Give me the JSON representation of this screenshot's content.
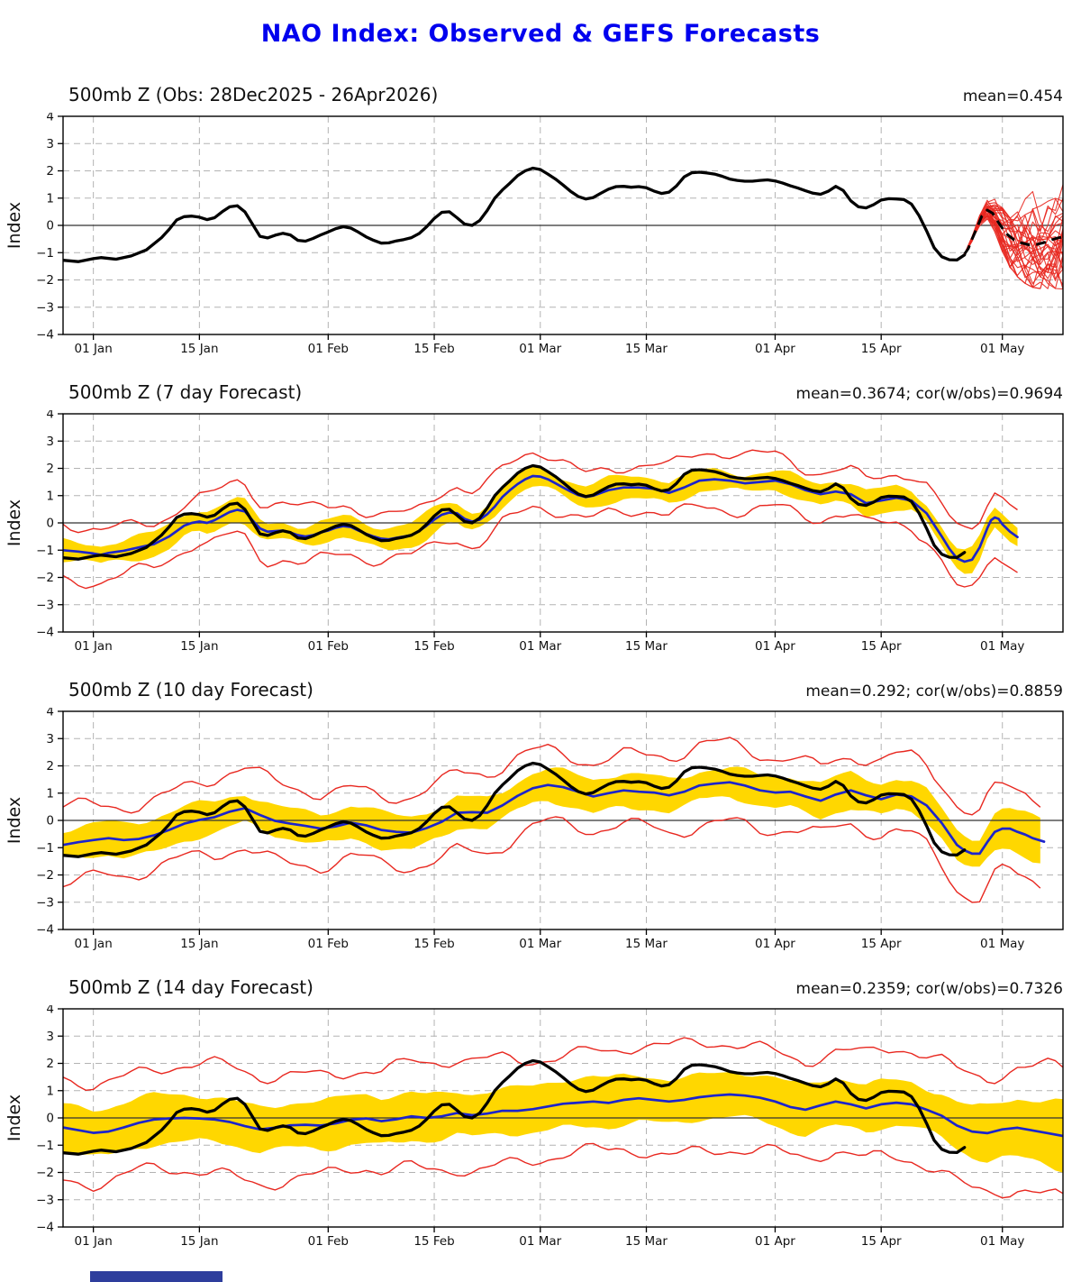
{
  "page": {
    "title": "NAO Index: Observed & GEFS Forecasts"
  },
  "colors": {
    "title_blue": "#0000ee",
    "observed_black": "#000000",
    "ensemble_red": "#e82820",
    "forecast_blue": "#1c24cc",
    "band_yellow": "#ffd700",
    "grid_gray": "#b3b3b3",
    "zero_line": "#333333"
  },
  "axis": {
    "ylabel": "Index",
    "ylim": [
      -4,
      4
    ],
    "ytick_values": [
      4,
      3,
      2,
      1,
      0,
      -1,
      -2,
      -3,
      -4
    ],
    "ytick_labels": [
      "4",
      "3",
      "2",
      "1",
      "0",
      "−1",
      "−2",
      "−3",
      "−4"
    ],
    "xtick_days": [
      4,
      18,
      35,
      49,
      63,
      77,
      94,
      108,
      124
    ],
    "xtick_labels": [
      "01 Jan",
      "15 Jan",
      "01 Feb",
      "15 Feb",
      "01 Mar",
      "15 Mar",
      "01 Apr",
      "15 Apr",
      "01 May"
    ],
    "day_range": [
      0,
      132
    ]
  },
  "panels": [
    {
      "title": "500mb Z (Obs: 28Dec2025 - 26Apr2026)",
      "stats": "mean=0.454",
      "kind": "obs_ensemble",
      "members": 30,
      "seed": 11
    },
    {
      "title": "500mb Z (7 day Forecast)",
      "stats": "mean=0.3674; cor(w/obs)=0.9694",
      "kind": "forecast",
      "fc_key": "fc7",
      "band_halfwidth": 0.38,
      "envelope_halfwidth": 0.92,
      "seed": 2
    },
    {
      "title": "500mb Z (10 day Forecast)",
      "stats": "mean=0.292; cor(w/obs)=0.8859",
      "kind": "forecast",
      "fc_key": "fc10",
      "band_halfwidth": 0.58,
      "envelope_halfwidth": 1.35,
      "seed": 5
    },
    {
      "title": "500mb Z (14 day Forecast)",
      "stats": "mean=0.2359; cor(w/obs)=0.7326",
      "kind": "forecast",
      "fc_key": "fc14",
      "band_halfwidth": 0.85,
      "envelope_halfwidth": 1.9,
      "seed": 8
    }
  ],
  "chart_data": {
    "type": "line",
    "title": "NAO Index: Observed & GEFS Forecasts",
    "x_unit": "days since 28Dec2025",
    "observed": [
      [
        0,
        -1.28
      ],
      [
        2,
        -1.33
      ],
      [
        4,
        -1.22
      ],
      [
        5,
        -1.18
      ],
      [
        7,
        -1.24
      ],
      [
        9,
        -1.12
      ],
      [
        11,
        -0.9
      ],
      [
        13,
        -0.45
      ],
      [
        14,
        -0.15
      ],
      [
        15,
        0.2
      ],
      [
        16,
        0.32
      ],
      [
        17,
        0.34
      ],
      [
        18,
        0.3
      ],
      [
        19,
        0.21
      ],
      [
        20,
        0.28
      ],
      [
        21,
        0.5
      ],
      [
        22,
        0.68
      ],
      [
        23,
        0.72
      ],
      [
        24,
        0.5
      ],
      [
        25,
        0.05
      ],
      [
        26,
        -0.4
      ],
      [
        27,
        -0.46
      ],
      [
        28,
        -0.36
      ],
      [
        29,
        -0.29
      ],
      [
        30,
        -0.35
      ],
      [
        31,
        -0.55
      ],
      [
        32,
        -0.58
      ],
      [
        33,
        -0.48
      ],
      [
        34,
        -0.35
      ],
      [
        35,
        -0.24
      ],
      [
        36,
        -0.12
      ],
      [
        37,
        -0.05
      ],
      [
        38,
        -0.1
      ],
      [
        39,
        -0.25
      ],
      [
        40,
        -0.42
      ],
      [
        41,
        -0.55
      ],
      [
        42,
        -0.65
      ],
      [
        43,
        -0.64
      ],
      [
        44,
        -0.57
      ],
      [
        45,
        -0.52
      ],
      [
        46,
        -0.45
      ],
      [
        47,
        -0.3
      ],
      [
        48,
        -0.05
      ],
      [
        49,
        0.25
      ],
      [
        50,
        0.48
      ],
      [
        51,
        0.5
      ],
      [
        52,
        0.28
      ],
      [
        53,
        0.05
      ],
      [
        54,
        0.0
      ],
      [
        55,
        0.18
      ],
      [
        56,
        0.55
      ],
      [
        57,
        1.0
      ],
      [
        58,
        1.3
      ],
      [
        59,
        1.55
      ],
      [
        60,
        1.82
      ],
      [
        61,
        2.0
      ],
      [
        62,
        2.1
      ],
      [
        63,
        2.05
      ],
      [
        64,
        1.88
      ],
      [
        65,
        1.7
      ],
      [
        66,
        1.48
      ],
      [
        67,
        1.25
      ],
      [
        68,
        1.06
      ],
      [
        69,
        0.97
      ],
      [
        70,
        1.02
      ],
      [
        71,
        1.18
      ],
      [
        72,
        1.33
      ],
      [
        73,
        1.42
      ],
      [
        74,
        1.43
      ],
      [
        75,
        1.4
      ],
      [
        76,
        1.42
      ],
      [
        77,
        1.38
      ],
      [
        78,
        1.26
      ],
      [
        79,
        1.17
      ],
      [
        80,
        1.22
      ],
      [
        81,
        1.45
      ],
      [
        82,
        1.78
      ],
      [
        83,
        1.93
      ],
      [
        84,
        1.95
      ],
      [
        85,
        1.92
      ],
      [
        86,
        1.88
      ],
      [
        87,
        1.8
      ],
      [
        88,
        1.7
      ],
      [
        89,
        1.65
      ],
      [
        90,
        1.62
      ],
      [
        91,
        1.62
      ],
      [
        92,
        1.65
      ],
      [
        93,
        1.67
      ],
      [
        94,
        1.63
      ],
      [
        95,
        1.55
      ],
      [
        96,
        1.45
      ],
      [
        97,
        1.37
      ],
      [
        98,
        1.27
      ],
      [
        99,
        1.18
      ],
      [
        100,
        1.14
      ],
      [
        101,
        1.25
      ],
      [
        102,
        1.43
      ],
      [
        103,
        1.28
      ],
      [
        104,
        0.9
      ],
      [
        105,
        0.68
      ],
      [
        106,
        0.64
      ],
      [
        107,
        0.76
      ],
      [
        108,
        0.93
      ],
      [
        109,
        0.98
      ],
      [
        110,
        0.97
      ],
      [
        111,
        0.95
      ],
      [
        112,
        0.78
      ],
      [
        113,
        0.36
      ],
      [
        114,
        -0.2
      ],
      [
        115,
        -0.82
      ],
      [
        116,
        -1.15
      ],
      [
        117,
        -1.26
      ],
      [
        118,
        -1.27
      ],
      [
        119,
        -1.08
      ]
    ],
    "ensemble_mean_forecast": [
      [
        119,
        -1.05
      ],
      [
        119.5,
        -0.85
      ],
      [
        120,
        -0.5
      ],
      [
        120.7,
        -0.05
      ],
      [
        121.3,
        0.35
      ],
      [
        122,
        0.56
      ],
      [
        122.7,
        0.45
      ],
      [
        123.5,
        0.1
      ],
      [
        124.5,
        -0.3
      ],
      [
        125.5,
        -0.52
      ],
      [
        126.5,
        -0.64
      ],
      [
        127.5,
        -0.71
      ],
      [
        128.5,
        -0.7
      ],
      [
        129.5,
        -0.63
      ],
      [
        130.5,
        -0.53
      ],
      [
        131.2,
        -0.47
      ],
      [
        132,
        -0.42
      ]
    ],
    "ensemble_spread_by_day": [
      0.03,
      0.1,
      0.16,
      0.24,
      0.38,
      0.6,
      0.78,
      0.9,
      1.0,
      1.08,
      1.14,
      1.2,
      1.26,
      1.32
    ],
    "fc7": [
      [
        0,
        -1.0
      ],
      [
        2,
        -1.05
      ],
      [
        4,
        -1.12
      ],
      [
        5,
        -1.17
      ],
      [
        6,
        -1.1
      ],
      [
        8,
        -1.02
      ],
      [
        10,
        -0.9
      ],
      [
        12,
        -0.78
      ],
      [
        14,
        -0.5
      ],
      [
        15,
        -0.3
      ],
      [
        16,
        -0.1
      ],
      [
        17,
        0.0
      ],
      [
        18,
        0.05
      ],
      [
        19,
        0.0
      ],
      [
        20,
        0.1
      ],
      [
        21,
        0.25
      ],
      [
        22,
        0.4
      ],
      [
        23,
        0.48
      ],
      [
        24,
        0.42
      ],
      [
        25,
        0.1
      ],
      [
        26,
        -0.2
      ],
      [
        27,
        -0.32
      ],
      [
        28,
        -0.3
      ],
      [
        29,
        -0.28
      ],
      [
        30,
        -0.35
      ],
      [
        31,
        -0.45
      ],
      [
        32,
        -0.5
      ],
      [
        33,
        -0.45
      ],
      [
        34,
        -0.35
      ],
      [
        35,
        -0.28
      ],
      [
        36,
        -0.18
      ],
      [
        37,
        -0.12
      ],
      [
        38,
        -0.15
      ],
      [
        39,
        -0.28
      ],
      [
        40,
        -0.4
      ],
      [
        41,
        -0.5
      ],
      [
        42,
        -0.58
      ],
      [
        43,
        -0.6
      ],
      [
        44,
        -0.55
      ],
      [
        45,
        -0.5
      ],
      [
        46,
        -0.45
      ],
      [
        47,
        -0.3
      ],
      [
        48,
        -0.1
      ],
      [
        49,
        0.12
      ],
      [
        50,
        0.3
      ],
      [
        51,
        0.38
      ],
      [
        52,
        0.35
      ],
      [
        53,
        0.15
      ],
      [
        54,
        0.05
      ],
      [
        55,
        0.12
      ],
      [
        56,
        0.32
      ],
      [
        57,
        0.6
      ],
      [
        58,
        0.95
      ],
      [
        59,
        1.2
      ],
      [
        60,
        1.42
      ],
      [
        61,
        1.6
      ],
      [
        62,
        1.72
      ],
      [
        63,
        1.7
      ],
      [
        64,
        1.6
      ],
      [
        65,
        1.45
      ],
      [
        66,
        1.3
      ],
      [
        67,
        1.15
      ],
      [
        68,
        1.02
      ],
      [
        69,
        0.95
      ],
      [
        70,
        1.0
      ],
      [
        71,
        1.1
      ],
      [
        72,
        1.2
      ],
      [
        74,
        1.3
      ],
      [
        76,
        1.3
      ],
      [
        78,
        1.25
      ],
      [
        80,
        1.1
      ],
      [
        82,
        1.3
      ],
      [
        84,
        1.55
      ],
      [
        86,
        1.6
      ],
      [
        88,
        1.55
      ],
      [
        90,
        1.45
      ],
      [
        92,
        1.5
      ],
      [
        94,
        1.55
      ],
      [
        96,
        1.42
      ],
      [
        98,
        1.2
      ],
      [
        100,
        1.05
      ],
      [
        102,
        1.15
      ],
      [
        104,
        1.05
      ],
      [
        106,
        0.72
      ],
      [
        108,
        0.82
      ],
      [
        110,
        0.92
      ],
      [
        112,
        0.82
      ],
      [
        114,
        0.35
      ],
      [
        116,
        -0.5
      ],
      [
        117,
        -0.95
      ],
      [
        118,
        -1.3
      ],
      [
        119,
        -1.42
      ],
      [
        120,
        -1.35
      ],
      [
        121,
        -0.9
      ],
      [
        122,
        -0.2
      ],
      [
        122.5,
        0.1
      ],
      [
        123,
        0.2
      ],
      [
        123.5,
        0.15
      ],
      [
        124,
        -0.05
      ],
      [
        125,
        -0.32
      ],
      [
        126,
        -0.52
      ]
    ],
    "fc10": [
      [
        0,
        -0.9
      ],
      [
        2,
        -0.8
      ],
      [
        4,
        -0.72
      ],
      [
        6,
        -0.65
      ],
      [
        8,
        -0.72
      ],
      [
        10,
        -0.68
      ],
      [
        12,
        -0.55
      ],
      [
        14,
        -0.35
      ],
      [
        16,
        -0.12
      ],
      [
        18,
        0.02
      ],
      [
        20,
        0.12
      ],
      [
        22,
        0.32
      ],
      [
        24,
        0.45
      ],
      [
        26,
        0.2
      ],
      [
        28,
        -0.02
      ],
      [
        30,
        -0.12
      ],
      [
        32,
        -0.2
      ],
      [
        34,
        -0.3
      ],
      [
        36,
        -0.22
      ],
      [
        38,
        -0.08
      ],
      [
        40,
        -0.18
      ],
      [
        42,
        -0.35
      ],
      [
        44,
        -0.42
      ],
      [
        46,
        -0.45
      ],
      [
        48,
        -0.28
      ],
      [
        50,
        -0.05
      ],
      [
        52,
        0.28
      ],
      [
        54,
        0.3
      ],
      [
        56,
        0.28
      ],
      [
        58,
        0.55
      ],
      [
        60,
        0.9
      ],
      [
        62,
        1.18
      ],
      [
        64,
        1.3
      ],
      [
        66,
        1.22
      ],
      [
        68,
        1.05
      ],
      [
        70,
        0.88
      ],
      [
        72,
        1.0
      ],
      [
        74,
        1.1
      ],
      [
        76,
        1.05
      ],
      [
        78,
        1.02
      ],
      [
        80,
        0.92
      ],
      [
        82,
        1.05
      ],
      [
        84,
        1.28
      ],
      [
        86,
        1.35
      ],
      [
        88,
        1.4
      ],
      [
        90,
        1.28
      ],
      [
        92,
        1.1
      ],
      [
        94,
        1.02
      ],
      [
        96,
        1.05
      ],
      [
        98,
        0.88
      ],
      [
        100,
        0.72
      ],
      [
        102,
        0.95
      ],
      [
        104,
        1.1
      ],
      [
        106,
        0.92
      ],
      [
        108,
        0.78
      ],
      [
        110,
        0.95
      ],
      [
        112,
        0.88
      ],
      [
        114,
        0.55
      ],
      [
        116,
        -0.1
      ],
      [
        118,
        -0.9
      ],
      [
        119,
        -1.1
      ],
      [
        120,
        -1.22
      ],
      [
        121,
        -1.22
      ],
      [
        122,
        -0.8
      ],
      [
        123,
        -0.42
      ],
      [
        124,
        -0.3
      ],
      [
        125,
        -0.3
      ],
      [
        126,
        -0.42
      ],
      [
        127,
        -0.52
      ],
      [
        128,
        -0.65
      ],
      [
        129.5,
        -0.78
      ]
    ],
    "fc14": [
      [
        0,
        -0.35
      ],
      [
        2,
        -0.45
      ],
      [
        4,
        -0.55
      ],
      [
        6,
        -0.5
      ],
      [
        8,
        -0.35
      ],
      [
        10,
        -0.18
      ],
      [
        12,
        -0.06
      ],
      [
        14,
        -0.02
      ],
      [
        16,
        0.0
      ],
      [
        18,
        -0.02
      ],
      [
        20,
        -0.06
      ],
      [
        22,
        -0.15
      ],
      [
        24,
        -0.3
      ],
      [
        26,
        -0.42
      ],
      [
        28,
        -0.36
      ],
      [
        30,
        -0.27
      ],
      [
        32,
        -0.25
      ],
      [
        34,
        -0.28
      ],
      [
        36,
        -0.2
      ],
      [
        38,
        -0.07
      ],
      [
        40,
        -0.02
      ],
      [
        42,
        -0.12
      ],
      [
        44,
        -0.05
      ],
      [
        46,
        0.06
      ],
      [
        48,
        0.0
      ],
      [
        50,
        0.06
      ],
      [
        52,
        0.18
      ],
      [
        54,
        0.1
      ],
      [
        56,
        0.16
      ],
      [
        58,
        0.26
      ],
      [
        60,
        0.26
      ],
      [
        62,
        0.32
      ],
      [
        64,
        0.42
      ],
      [
        66,
        0.52
      ],
      [
        68,
        0.56
      ],
      [
        70,
        0.6
      ],
      [
        72,
        0.55
      ],
      [
        74,
        0.66
      ],
      [
        76,
        0.72
      ],
      [
        78,
        0.66
      ],
      [
        80,
        0.6
      ],
      [
        82,
        0.66
      ],
      [
        84,
        0.76
      ],
      [
        86,
        0.82
      ],
      [
        88,
        0.86
      ],
      [
        90,
        0.82
      ],
      [
        92,
        0.74
      ],
      [
        94,
        0.6
      ],
      [
        96,
        0.4
      ],
      [
        98,
        0.3
      ],
      [
        100,
        0.46
      ],
      [
        102,
        0.6
      ],
      [
        104,
        0.5
      ],
      [
        106,
        0.35
      ],
      [
        108,
        0.5
      ],
      [
        110,
        0.56
      ],
      [
        112,
        0.5
      ],
      [
        114,
        0.3
      ],
      [
        116,
        0.08
      ],
      [
        118,
        -0.28
      ],
      [
        120,
        -0.5
      ],
      [
        122,
        -0.56
      ],
      [
        124,
        -0.42
      ],
      [
        126,
        -0.36
      ],
      [
        128,
        -0.46
      ],
      [
        130,
        -0.56
      ],
      [
        132,
        -0.66
      ]
    ]
  }
}
